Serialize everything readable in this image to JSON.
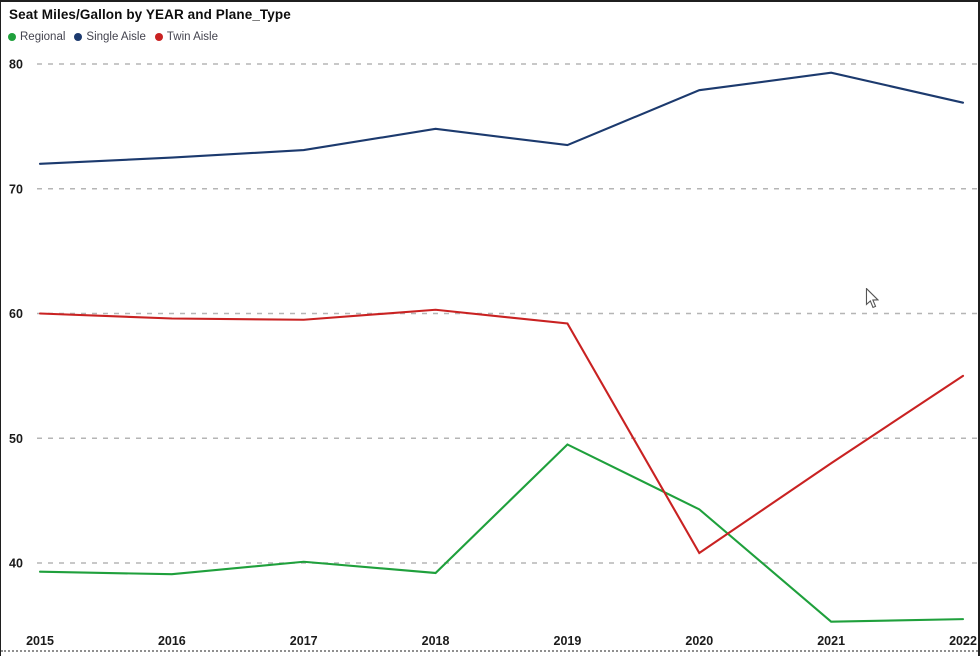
{
  "title": "Seat Miles/Gallon by YEAR and Plane_Type",
  "legend": {
    "items": [
      {
        "label": "Regional",
        "color": "#1fa03c"
      },
      {
        "label": "Single Aisle",
        "color": "#1c3a6e"
      },
      {
        "label": "Twin Aisle",
        "color": "#c92222"
      }
    ]
  },
  "chart_data": {
    "type": "line",
    "title": "Seat Miles/Gallon by YEAR and Plane_Type",
    "xlabel": "YEAR",
    "ylabel": "Seat Miles/Gallon",
    "categories": [
      "2015",
      "2016",
      "2017",
      "2018",
      "2019",
      "2020",
      "2021",
      "2022"
    ],
    "series": [
      {
        "name": "Regional",
        "color": "#1fa03c",
        "values": [
          39.3,
          39.1,
          40.1,
          39.2,
          49.5,
          44.3,
          35.3,
          35.5
        ]
      },
      {
        "name": "Single Aisle",
        "color": "#1c3a6e",
        "values": [
          72.0,
          72.5,
          73.1,
          74.8,
          73.5,
          77.9,
          79.3,
          76.9
        ]
      },
      {
        "name": "Twin Aisle",
        "color": "#c92222",
        "values": [
          60.0,
          59.6,
          59.5,
          60.3,
          59.2,
          40.8,
          48.0,
          55.0
        ]
      }
    ],
    "y_ticks": [
      80,
      70,
      60,
      50,
      40
    ],
    "ylim": [
      33,
      81.5
    ],
    "grid": "dashed-horizontal",
    "legend_position": "top-left",
    "gridline_color": "#b5b5b5",
    "tick_label_color": "#1b1b1b"
  }
}
